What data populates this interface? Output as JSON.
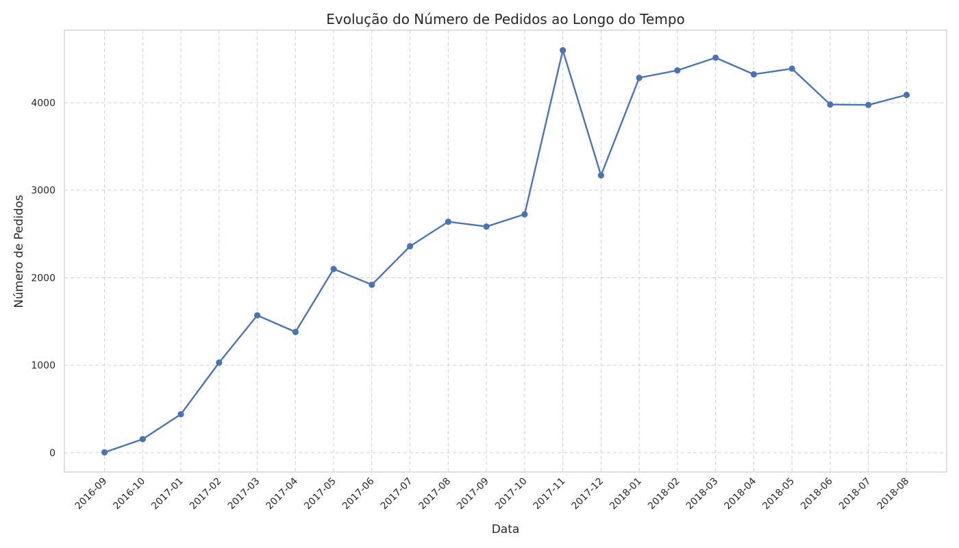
{
  "chart_data": {
    "type": "line",
    "title": "Evolução do Número de Pedidos ao Longo do Tempo",
    "xlabel": "Data",
    "ylabel": "Número de Pedidos",
    "categories": [
      "2016-09",
      "2016-10",
      "2017-01",
      "2017-02",
      "2017-03",
      "2017-04",
      "2017-05",
      "2017-06",
      "2017-07",
      "2017-08",
      "2017-09",
      "2017-10",
      "2017-11",
      "2017-12",
      "2018-01",
      "2018-02",
      "2018-03",
      "2018-04",
      "2018-05",
      "2018-06",
      "2018-07",
      "2018-08"
    ],
    "series": [
      {
        "color": "#4c72b0",
        "values": [
          4,
          155,
          440,
          1030,
          1570,
          1380,
          2100,
          1920,
          2360,
          2640,
          2585,
          2725,
          4600,
          3170,
          4285,
          4370,
          4515,
          4325,
          4390,
          3980,
          3975,
          4090
        ]
      }
    ],
    "ylim": [
      -220,
      4830
    ],
    "yticks": [
      0,
      1000,
      2000,
      3000,
      4000
    ],
    "grid": true,
    "markers": true,
    "legend": false
  }
}
